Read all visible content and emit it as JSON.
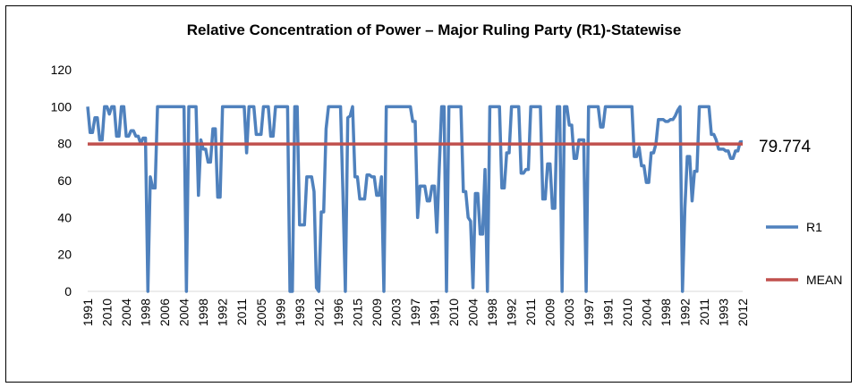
{
  "chart_data": {
    "type": "line",
    "title": "Relative Concentration of Power – Major Ruling Party (R1)-Statewise",
    "xlabel": "",
    "ylabel": "",
    "ylim": [
      0,
      120
    ],
    "yticks": [
      0,
      20,
      40,
      60,
      80,
      100,
      120
    ],
    "x_tick_labels": [
      "1991",
      "2010",
      "2004",
      "1998",
      "2006",
      "2004",
      "1998",
      "1992",
      "2011",
      "2005",
      "1999",
      "1993",
      "2012",
      "1996",
      "2015",
      "2009",
      "2003",
      "1997",
      "1991",
      "2010",
      "2004",
      "1998",
      "1992",
      "2011",
      "2009",
      "2003",
      "1997",
      "1991",
      "2010",
      "2004",
      "1998",
      "1992",
      "2011",
      "1993",
      "2012"
    ],
    "grid": false,
    "legend_position": "right",
    "mean_value_label": "79.774",
    "series": [
      {
        "name": "R1",
        "color": "#4f81bd",
        "values": [
          100,
          86,
          86,
          94,
          94,
          82,
          82,
          100,
          100,
          96,
          100,
          100,
          84,
          84,
          100,
          100,
          84,
          84,
          87,
          87,
          84,
          84,
          80,
          83,
          83,
          0,
          62,
          56,
          56,
          100,
          100,
          100,
          100,
          100,
          100,
          100,
          100,
          100,
          100,
          100,
          100,
          0,
          100,
          100,
          100,
          100,
          52,
          82,
          77,
          77,
          70,
          70,
          88,
          88,
          51,
          51,
          100,
          100,
          100,
          100,
          100,
          100,
          100,
          100,
          100,
          100,
          75,
          100,
          100,
          100,
          85,
          85,
          85,
          100,
          100,
          100,
          84,
          84,
          100,
          100,
          100,
          100,
          100,
          100,
          0,
          0,
          100,
          100,
          36,
          36,
          36,
          62,
          62,
          62,
          54,
          2,
          0,
          43,
          43,
          88,
          100,
          100,
          100,
          100,
          100,
          100,
          53,
          0,
          94,
          95,
          100,
          62,
          62,
          50,
          50,
          50,
          63,
          63,
          62,
          62,
          52,
          52,
          62,
          0,
          100,
          100,
          100,
          100,
          100,
          100,
          100,
          100,
          100,
          100,
          100,
          92,
          92,
          40,
          57,
          57,
          57,
          49,
          49,
          57,
          57,
          32,
          67,
          100,
          100,
          0,
          100,
          100,
          100,
          100,
          100,
          100,
          54,
          54,
          40,
          38,
          2,
          53,
          53,
          31,
          31,
          66,
          0,
          100,
          100,
          100,
          100,
          100,
          56,
          56,
          75,
          75,
          100,
          100,
          100,
          100,
          64,
          64,
          66,
          66,
          100,
          100,
          100,
          100,
          100,
          50,
          50,
          69,
          69,
          45,
          45,
          100,
          100,
          0,
          100,
          100,
          90,
          90,
          72,
          72,
          82,
          82,
          82,
          0,
          100,
          100,
          100,
          100,
          100,
          89,
          89,
          100,
          100,
          100,
          100,
          100,
          100,
          100,
          100,
          100,
          100,
          100,
          100,
          73,
          73,
          78,
          68,
          68,
          59,
          59,
          75,
          75,
          80,
          93,
          93,
          93,
          92,
          92,
          93,
          93,
          95,
          98,
          100,
          0,
          45,
          73,
          73,
          49,
          65,
          65,
          100,
          100,
          100,
          100,
          100,
          85,
          85,
          82,
          77,
          77,
          77,
          76,
          76,
          72,
          72,
          76,
          76,
          81,
          81
        ]
      },
      {
        "name": "MEAN",
        "color": "#c0504d",
        "value": 79.774
      }
    ]
  }
}
